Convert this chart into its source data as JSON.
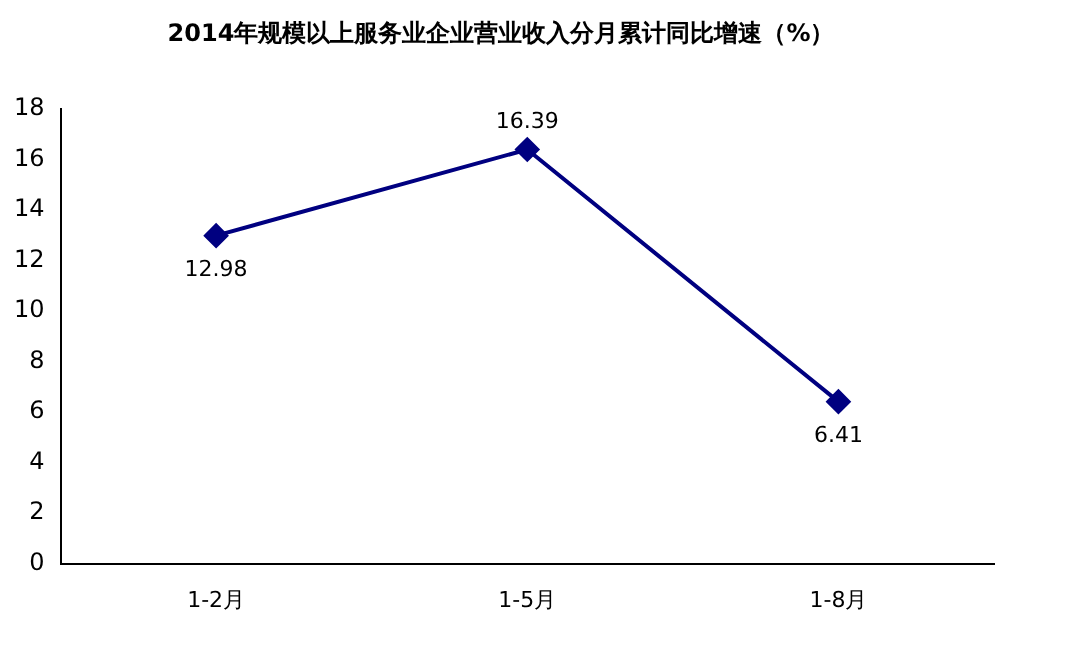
{
  "chart_data": {
    "type": "line",
    "title": "2014年规模以上服务业企业营业收入分月累计同比增速（%）",
    "categories": [
      "1-2月",
      "1-5月",
      "1-8月"
    ],
    "series": [
      {
        "color": "#000080",
        "values": [
          12.98,
          16.39,
          6.41
        ]
      }
    ],
    "ylim": [
      0,
      18
    ],
    "yticks": [
      0,
      2,
      4,
      6,
      8,
      10,
      12,
      14,
      16,
      18
    ],
    "grid": false,
    "legend": false,
    "marker": "diamond",
    "line_style": "solid",
    "data_labels": true
  }
}
